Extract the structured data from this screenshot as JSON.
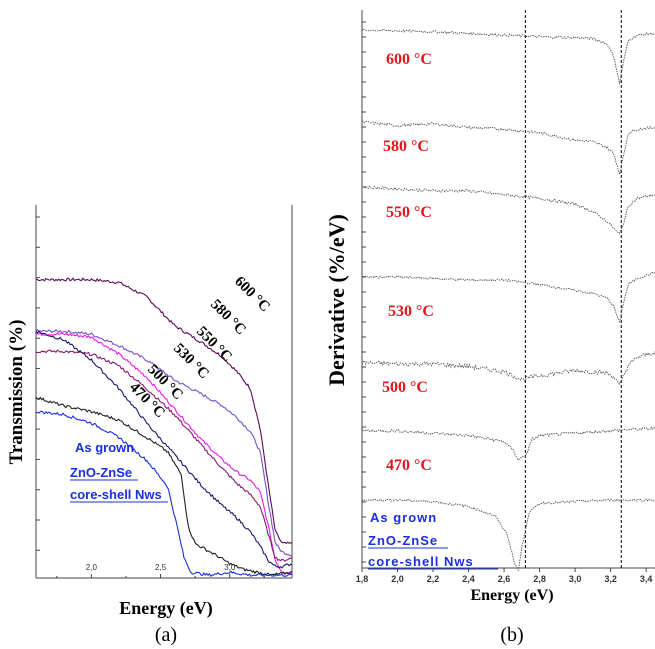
{
  "chart_data": [
    {
      "type": "line",
      "panel": "(a)",
      "xlabel": "Energy (eV)",
      "ylabel": "Transmission (%)",
      "xlim": [
        1.6,
        3.45
      ],
      "x_ticks": [
        "2,0",
        "2,5",
        "3,0"
      ],
      "annotation": [
        "As grown",
        "ZnO-ZnSe",
        "core-shell Nws"
      ],
      "series": [
        {
          "name": "600 °C",
          "label": "600 °C",
          "color": "#5a0a5a",
          "x": [
            1.6,
            1.8,
            2.0,
            2.2,
            2.4,
            2.6,
            2.8,
            2.95,
            3.05,
            3.15,
            3.22,
            3.28,
            3.33,
            3.38,
            3.45
          ],
          "y": [
            5.2,
            5.2,
            5.2,
            5.15,
            4.9,
            4.4,
            4.1,
            3.85,
            3.6,
            3.3,
            2.6,
            1.6,
            0.8,
            0.6,
            0.6
          ]
        },
        {
          "name": "580 °C",
          "label": "580 °C",
          "color": "#7b50c8",
          "x": [
            1.6,
            1.8,
            2.0,
            2.2,
            2.4,
            2.6,
            2.8,
            2.95,
            3.05,
            3.15,
            3.22,
            3.28,
            3.33,
            3.38,
            3.45
          ],
          "y": [
            4.3,
            4.3,
            4.25,
            4.05,
            3.8,
            3.45,
            3.2,
            3.0,
            2.8,
            2.55,
            2.2,
            1.3,
            0.6,
            0.45,
            0.4
          ]
        },
        {
          "name": "550 °C",
          "label": "550 °C",
          "color": "#e81ce8",
          "x": [
            1.6,
            1.8,
            2.0,
            2.2,
            2.4,
            2.6,
            2.8,
            2.95,
            3.05,
            3.15,
            3.22,
            3.28,
            3.33,
            3.38,
            3.45
          ],
          "y": [
            4.25,
            4.25,
            4.2,
            3.9,
            3.5,
            2.95,
            2.4,
            2.05,
            1.85,
            1.7,
            1.5,
            0.9,
            0.3,
            0.1,
            0.1
          ]
        },
        {
          "name": "530 °C",
          "label": "530 °C",
          "color": "#8a1a6c",
          "x": [
            1.6,
            1.8,
            2.0,
            2.2,
            2.4,
            2.6,
            2.8,
            2.95,
            3.05,
            3.15,
            3.22,
            3.28,
            3.33,
            3.38,
            3.45
          ],
          "y": [
            3.95,
            3.95,
            3.9,
            3.7,
            3.3,
            2.85,
            2.3,
            1.9,
            1.65,
            1.45,
            1.25,
            0.75,
            0.35,
            0.3,
            0.35
          ]
        },
        {
          "name": "500 °C",
          "label": "500 °C",
          "color": "#1a1a6a",
          "x": [
            1.6,
            1.8,
            2.0,
            2.2,
            2.4,
            2.6,
            2.8,
            2.95,
            3.05,
            3.15,
            3.22,
            3.28,
            3.33,
            3.38,
            3.45
          ],
          "y": [
            4.3,
            4.15,
            3.8,
            3.3,
            2.7,
            2.15,
            1.6,
            1.25,
            1.05,
            0.8,
            0.55,
            0.3,
            0.2,
            0.2,
            0.25
          ]
        },
        {
          "name": "470 °C",
          "label": "470 °C",
          "color": "#222222",
          "x": [
            1.6,
            1.8,
            2.0,
            2.2,
            2.4,
            2.55,
            2.65,
            2.7,
            2.75,
            2.9,
            3.0,
            3.1,
            3.2,
            3.3,
            3.45
          ],
          "y": [
            3.15,
            3.0,
            2.9,
            2.75,
            2.45,
            2.2,
            1.8,
            0.9,
            0.6,
            0.4,
            0.25,
            0.15,
            0.1,
            0.05,
            0.1
          ]
        },
        {
          "name": "As grown",
          "label": "",
          "color": "#1a2fe0",
          "x": [
            1.6,
            1.8,
            2.0,
            2.2,
            2.4,
            2.55,
            2.62,
            2.67,
            2.72,
            2.85,
            3.0,
            3.15,
            3.3,
            3.45
          ],
          "y": [
            2.9,
            2.85,
            2.7,
            2.45,
            2.05,
            1.6,
            0.9,
            0.35,
            0.1,
            0.05,
            0.1,
            0.05,
            0.05,
            0.05
          ]
        }
      ]
    },
    {
      "type": "line",
      "panel": "(b)",
      "xlabel": "Energy (eV)",
      "ylabel": "Derivative (%/eV)",
      "xlim": [
        1.8,
        3.45
      ],
      "x_ticks": [
        "1,8",
        "2,0",
        "2,2",
        "2,4",
        "2,6",
        "2,8",
        "3,0",
        "3,2",
        "3,4"
      ],
      "reference_lines_x": [
        2.72,
        3.26
      ],
      "annotation": [
        "As grown",
        "ZnO-ZnSe",
        "core-shell Nws"
      ],
      "series": [
        {
          "name": "600 °C",
          "label": "600 °C",
          "x": [
            1.8,
            2.2,
            2.6,
            2.8,
            3.0,
            3.1,
            3.18,
            3.22,
            3.25,
            3.27,
            3.3,
            3.35,
            3.45
          ],
          "y": [
            0,
            -0.1,
            -0.3,
            -0.4,
            -0.45,
            -0.5,
            -0.8,
            -1.6,
            -3.2,
            -2.0,
            -0.6,
            -0.3,
            -0.2
          ]
        },
        {
          "name": "580 °C",
          "label": "580 °C",
          "x": [
            1.8,
            2.0,
            2.2,
            2.4,
            2.6,
            2.8,
            3.0,
            3.1,
            3.18,
            3.22,
            3.25,
            3.27,
            3.3,
            3.35,
            3.45
          ],
          "y": [
            0,
            -0.2,
            -0.1,
            -0.3,
            -0.4,
            -0.6,
            -1.0,
            -1.1,
            -1.4,
            -1.8,
            -2.9,
            -2.0,
            -0.6,
            -0.4,
            -0.3
          ]
        },
        {
          "name": "550 °C",
          "label": "550 °C",
          "x": [
            1.8,
            2.0,
            2.2,
            2.4,
            2.6,
            2.8,
            3.0,
            3.1,
            3.18,
            3.22,
            3.25,
            3.27,
            3.3,
            3.35,
            3.45
          ],
          "y": [
            0,
            -0.1,
            -0.2,
            -0.2,
            -0.4,
            -0.6,
            -0.9,
            -1.3,
            -1.8,
            -2.2,
            -2.5,
            -2.0,
            -1.0,
            -0.6,
            -0.4
          ]
        },
        {
          "name": "530 °C",
          "label": "530 °C",
          "x": [
            1.8,
            2.0,
            2.2,
            2.4,
            2.6,
            2.8,
            3.0,
            3.1,
            3.18,
            3.22,
            3.25,
            3.27,
            3.3,
            3.35,
            3.45
          ],
          "y": [
            0,
            0,
            -0.1,
            -0.2,
            -0.2,
            -0.5,
            -0.9,
            -1.1,
            -1.4,
            -2.0,
            -3.1,
            -1.8,
            -0.5,
            -0.1,
            0.3
          ]
        },
        {
          "name": "500 °C",
          "label": "500 °C",
          "x": [
            1.8,
            2.0,
            2.2,
            2.4,
            2.6,
            2.7,
            2.8,
            3.0,
            3.1,
            3.18,
            3.22,
            3.25,
            3.27,
            3.3,
            3.35,
            3.45
          ],
          "y": [
            -0.2,
            -0.3,
            -0.3,
            -0.5,
            -0.9,
            -1.5,
            -1.2,
            -0.8,
            -0.9,
            -1.0,
            -1.3,
            -2.0,
            -1.3,
            -0.4,
            0.2,
            0.6
          ]
        },
        {
          "name": "470 °C",
          "label": "470 °C",
          "x": [
            1.8,
            2.0,
            2.2,
            2.4,
            2.6,
            2.65,
            2.68,
            2.72,
            2.76,
            2.8,
            3.0,
            3.2,
            3.3,
            3.45
          ],
          "y": [
            0.1,
            0.1,
            -0.1,
            -0.3,
            -0.8,
            -1.5,
            -2.3,
            -2.0,
            -0.6,
            -0.3,
            -0.1,
            0.1,
            0.2,
            0.3
          ]
        },
        {
          "name": "As grown",
          "label": "",
          "x": [
            1.8,
            2.0,
            2.2,
            2.4,
            2.55,
            2.62,
            2.66,
            2.68,
            2.7,
            2.74,
            2.8,
            3.0,
            3.2,
            3.45
          ],
          "y": [
            0,
            0,
            -0.1,
            -0.4,
            -1.0,
            -2.2,
            -4.0,
            -4.4,
            -3.0,
            -0.8,
            -0.2,
            -0.1,
            0,
            0
          ]
        }
      ]
    }
  ],
  "captions": {
    "a": "(a)",
    "b": "(b)"
  }
}
